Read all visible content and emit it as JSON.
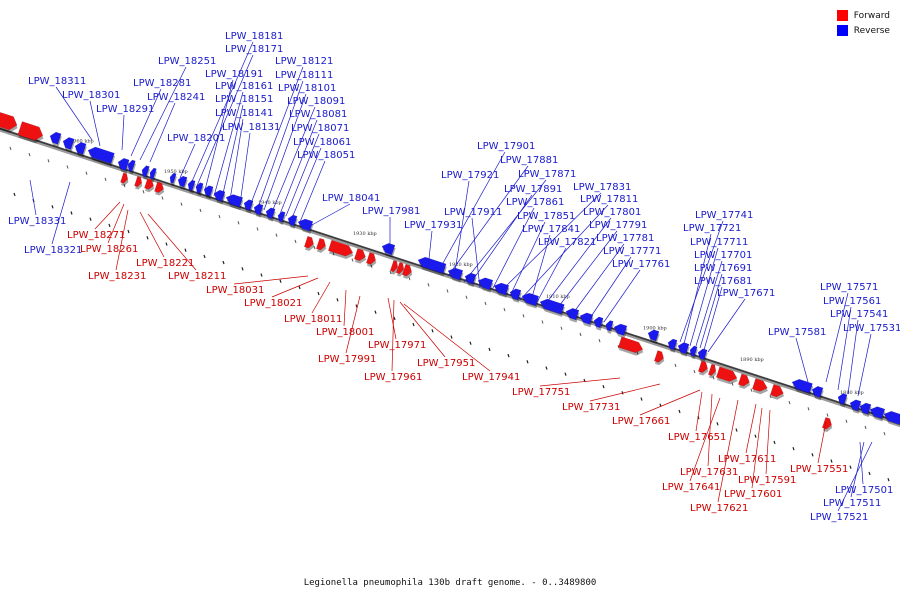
{
  "legend": [
    {
      "label": "Forward",
      "color": "#ff0000"
    },
    {
      "label": "Reverse",
      "color": "#0000ff"
    }
  ],
  "caption": "Legionella pneumophila 130b draft genome. - 0..3489800",
  "colors": {
    "forward": "#ee1111",
    "reverse": "#1a1aee",
    "forward_text": "#cc0000",
    "reverse_text": "#1a1acc"
  },
  "ticks": [
    "1960 kbp",
    "1950 kbp",
    "1940 kbp",
    "1930 kbp",
    "1920 kbp",
    "1910 kbp",
    "1900 kbp",
    "1890 kbp",
    "1880 kbp"
  ],
  "reverse_labels": [
    "LPW_18311",
    "LPW_18301",
    "LPW_18291",
    "LPW_18281",
    "LPW_18251",
    "LPW_18241",
    "LPW_18201",
    "LPW_18181",
    "LPW_18171",
    "LPW_18191",
    "LPW_18161",
    "LPW_18151",
    "LPW_18141",
    "LPW_18131",
    "LPW_18121",
    "LPW_18111",
    "LPW_18101",
    "LPW_18091",
    "LPW_18081",
    "LPW_18071",
    "LPW_18061",
    "LPW_18051",
    "LPW_18041",
    "LPW_17981",
    "LPW_17931",
    "LPW_18331",
    "LPW_18321",
    "LPW_17901",
    "LPW_17881",
    "LPW_17921",
    "LPW_17871",
    "LPW_17891",
    "LPW_17911",
    "LPW_17861",
    "LPW_17831",
    "LPW_17811",
    "LPW_17851",
    "LPW_17841",
    "LPW_17801",
    "LPW_17791",
    "LPW_17821",
    "LPW_17781",
    "LPW_17771",
    "LPW_17761",
    "LPW_17741",
    "LPW_17721",
    "LPW_17711",
    "LPW_17701",
    "LPW_17691",
    "LPW_17681",
    "LPW_17671",
    "LPW_17581",
    "LPW_17571",
    "LPW_17561",
    "LPW_17541",
    "LPW_17531",
    "LPW_17501",
    "LPW_17511",
    "LPW_17521"
  ],
  "forward_labels": [
    "LPW_18271",
    "LPW_18261",
    "LPW_18231",
    "LPW_18221",
    "LPW_18211",
    "LPW_18031",
    "LPW_18021",
    "LPW_18011",
    "LPW_18001",
    "LPW_17991",
    "LPW_17971",
    "LPW_17961",
    "LPW_17951",
    "LPW_17941",
    "LPW_17751",
    "LPW_17731",
    "LPW_17661",
    "LPW_17651",
    "LPW_17631",
    "LPW_17641",
    "LPW_17621",
    "LPW_17611",
    "LPW_17591",
    "LPW_17601",
    "LPW_17551"
  ]
}
